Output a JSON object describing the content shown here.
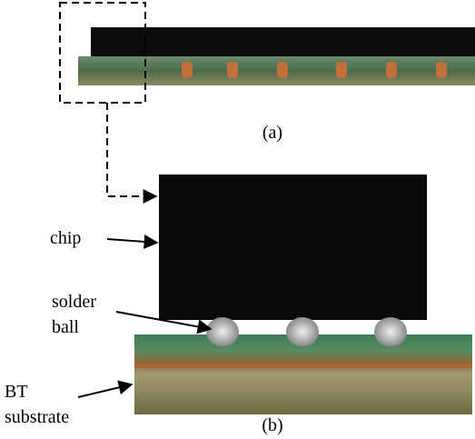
{
  "panels": [
    {
      "label": "(a)"
    },
    {
      "label": "(b)",
      "annotations": [
        {
          "lines": [
            "chip"
          ]
        },
        {
          "lines": [
            "solder",
            "ball"
          ]
        },
        {
          "lines": [
            "BT",
            "substrate"
          ]
        }
      ]
    }
  ]
}
